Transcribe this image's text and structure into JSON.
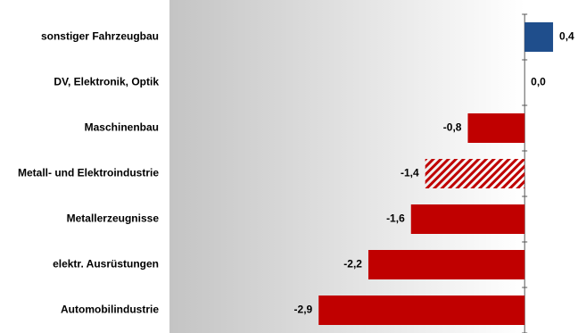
{
  "chart_data": {
    "type": "hbar",
    "categories": [
      "sonstiger Fahrzeugbau",
      "DV, Elektronik, Optik",
      "Maschinenbau",
      "Metall- und Elektroindustrie",
      "Metallerzeugnisse",
      "elektr. Ausrüstungen",
      "Automobilindustrie"
    ],
    "values": [
      0.4,
      0.0,
      -0.8,
      -1.4,
      -1.6,
      -2.2,
      -2.9
    ],
    "value_labels": [
      "0,4",
      "0,0",
      "-0,8",
      "-1,4",
      "-1,6",
      "-2,2",
      "-2,9"
    ],
    "colors": [
      "#1f4e8c",
      "#c00000",
      "#c00000",
      "#c00000",
      "#c00000",
      "#c00000",
      "#c00000"
    ],
    "patterns": [
      "solid",
      "solid",
      "solid",
      "hatch",
      "solid",
      "solid",
      "solid"
    ],
    "xlim": [
      -5,
      0.5
    ]
  }
}
